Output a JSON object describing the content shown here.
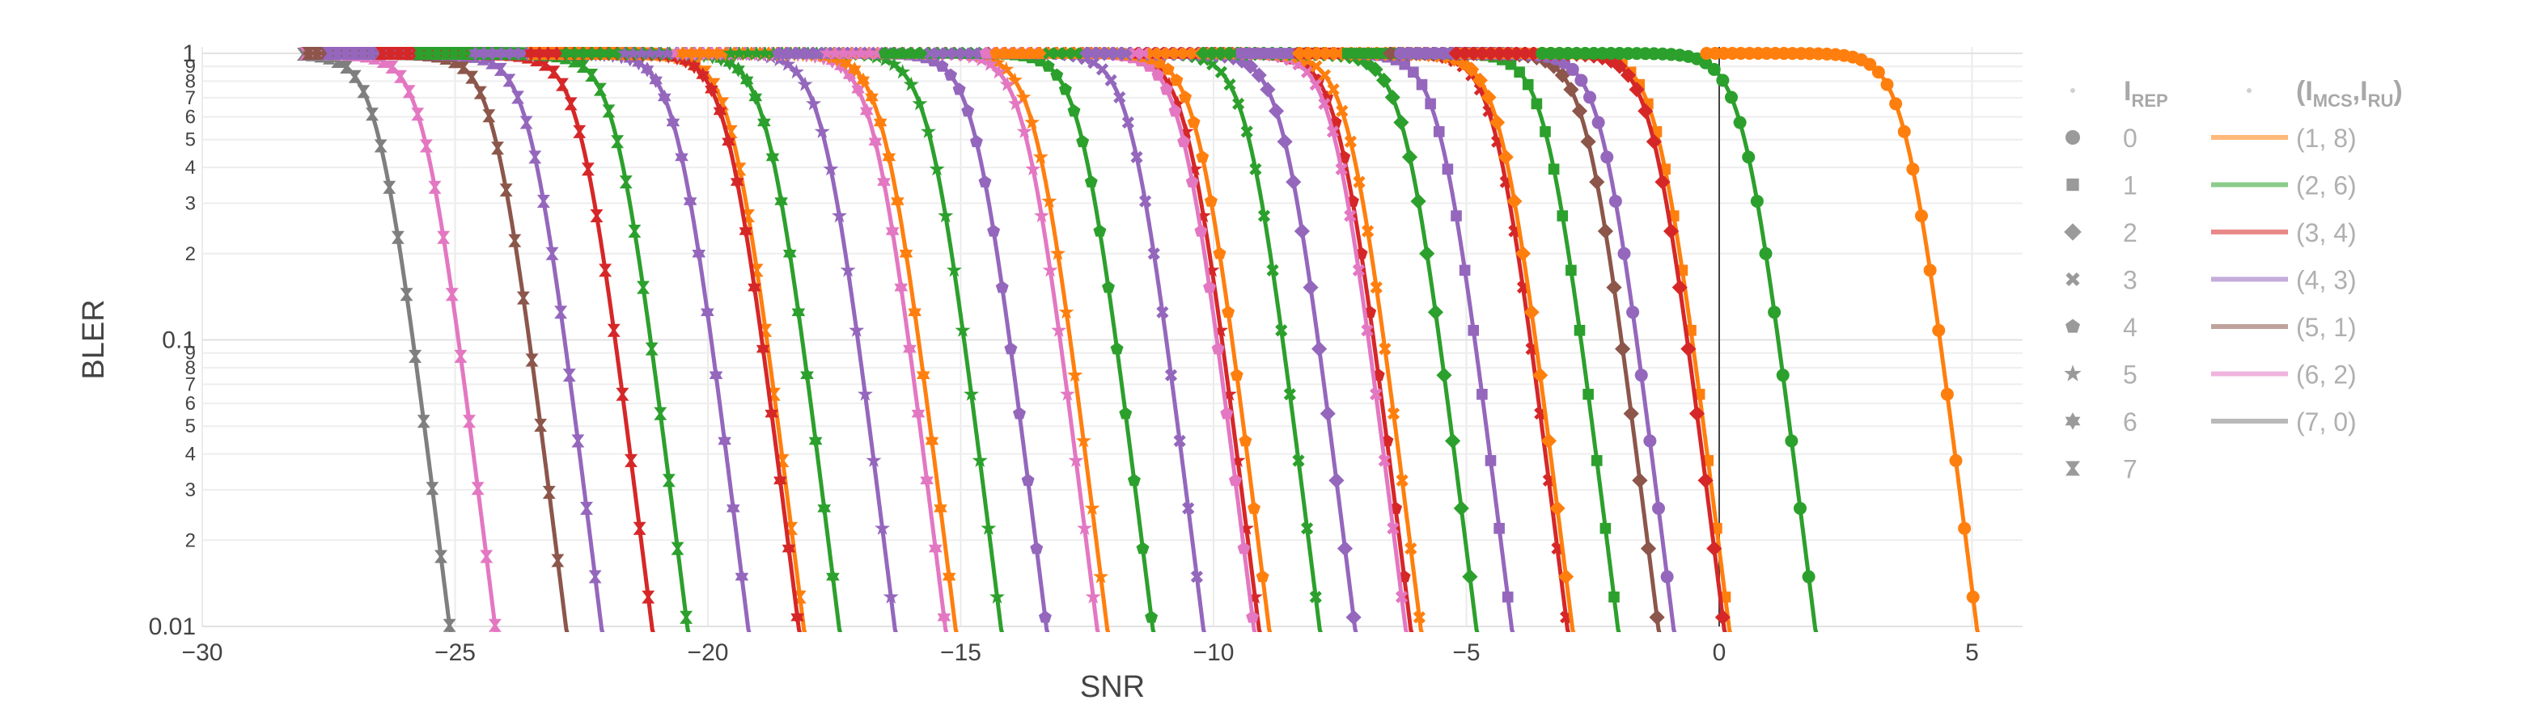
{
  "chart_data": {
    "type": "line",
    "xlabel": "SNR",
    "ylabel": "BLER",
    "xlim": [
      -30,
      6
    ],
    "ylim": [
      0.01,
      1
    ],
    "y_scale": "log",
    "grid": true,
    "x_ticks": [
      "−30",
      "−25",
      "−20",
      "−15",
      "−10",
      "−5",
      "0",
      "5"
    ],
    "x_tick_values": [
      -30,
      -25,
      -20,
      -15,
      -10,
      -5,
      0,
      5
    ],
    "y_major_ticks": [
      "1",
      "0.1",
      "0.01"
    ],
    "y_major_values": [
      1,
      0.1,
      0.01
    ],
    "y_minor_ticks": [
      "9",
      "8",
      "7",
      "6",
      "5",
      "4",
      "3",
      "2"
    ],
    "y_minor_multipliers": [
      9,
      8,
      7,
      6,
      5,
      4,
      3,
      2
    ],
    "legend_placement": "right",
    "legend_rep": {
      "title": "I",
      "title_sub": "REP",
      "items": [
        {
          "label": "0",
          "symbol": "circle"
        },
        {
          "label": "1",
          "symbol": "square"
        },
        {
          "label": "2",
          "symbol": "diamond"
        },
        {
          "label": "3",
          "symbol": "x"
        },
        {
          "label": "4",
          "symbol": "pentagon"
        },
        {
          "label": "5",
          "symbol": "star"
        },
        {
          "label": "6",
          "symbol": "hexagram"
        },
        {
          "label": "7",
          "symbol": "bowtie"
        }
      ]
    },
    "legend_mcs": {
      "title_parts": [
        "(I",
        "MCS",
        ",I",
        "RU",
        ")"
      ],
      "items": [
        {
          "label": "(1, 8)",
          "color": "#ff7f0e"
        },
        {
          "label": "(2, 6)",
          "color": "#2ca02c"
        },
        {
          "label": "(3, 4)",
          "color": "#d62728"
        },
        {
          "label": "(4, 3)",
          "color": "#9467bd"
        },
        {
          "label": "(5, 1)",
          "color": "#8c564b"
        },
        {
          "label": "(6, 2)",
          "color": "#e377c2"
        },
        {
          "label": "(7, 0)",
          "color": "#7f7f7f"
        }
      ]
    },
    "symbols_by_rep": [
      "circle",
      "square",
      "diamond",
      "x",
      "pentagon",
      "star",
      "hexagram",
      "bowtie"
    ],
    "curve_shape": {
      "slope": 3.3
    },
    "series": [
      {
        "color": "#7f7f7f",
        "rep": 7,
        "snr_at_bler_0_01": -25.1
      },
      {
        "color": "#e377c2",
        "rep": 7,
        "snr_at_bler_0_01": -24.2
      },
      {
        "color": "#8c564b",
        "rep": 7,
        "snr_at_bler_0_01": -22.8
      },
      {
        "color": "#9467bd",
        "rep": 7,
        "snr_at_bler_0_01": -22.1
      },
      {
        "color": "#d62728",
        "rep": 7,
        "snr_at_bler_0_01": -21.1
      },
      {
        "color": "#2ca02c",
        "rep": 7,
        "snr_at_bler_0_01": -20.4
      },
      {
        "color": "#9467bd",
        "rep": 6,
        "snr_at_bler_0_01": -19.2
      },
      {
        "color": "#ff7f0e",
        "rep": 7,
        "snr_at_bler_0_01": -18.1
      },
      {
        "color": "#d62728",
        "rep": 6,
        "snr_at_bler_0_01": -18.2
      },
      {
        "color": "#2ca02c",
        "rep": 6,
        "snr_at_bler_0_01": -17.4
      },
      {
        "color": "#9467bd",
        "rep": 5,
        "snr_at_bler_0_01": -16.3
      },
      {
        "color": "#e377c2",
        "rep": 6,
        "snr_at_bler_0_01": -15.3
      },
      {
        "color": "#ff7f0e",
        "rep": 6,
        "snr_at_bler_0_01": -15.1
      },
      {
        "color": "#2ca02c",
        "rep": 5,
        "snr_at_bler_0_01": -14.2
      },
      {
        "color": "#9467bd",
        "rep": 4,
        "snr_at_bler_0_01": -13.3
      },
      {
        "color": "#ff7f0e",
        "rep": 5,
        "snr_at_bler_0_01": -12.1
      },
      {
        "color": "#e377c2",
        "rep": 5,
        "snr_at_bler_0_01": -12.3
      },
      {
        "color": "#2ca02c",
        "rep": 4,
        "snr_at_bler_0_01": -11.2
      },
      {
        "color": "#9467bd",
        "rep": 3,
        "snr_at_bler_0_01": -10.2
      },
      {
        "color": "#d62728",
        "rep": 5,
        "snr_at_bler_0_01": -9.1
      },
      {
        "color": "#e377c2",
        "rep": 4,
        "snr_at_bler_0_01": -9.2
      },
      {
        "color": "#ff7f0e",
        "rep": 4,
        "snr_at_bler_0_01": -8.9
      },
      {
        "color": "#2ca02c",
        "rep": 3,
        "snr_at_bler_0_01": -7.9
      },
      {
        "color": "#9467bd",
        "rep": 2,
        "snr_at_bler_0_01": -7.2
      },
      {
        "color": "#d62728",
        "rep": 4,
        "snr_at_bler_0_01": -6.1
      },
      {
        "color": "#e377c2",
        "rep": 3,
        "snr_at_bler_0_01": -6.2
      },
      {
        "color": "#ff7f0e",
        "rep": 3,
        "snr_at_bler_0_01": -5.9
      },
      {
        "color": "#2ca02c",
        "rep": 2,
        "snr_at_bler_0_01": -4.8
      },
      {
        "color": "#9467bd",
        "rep": 1,
        "snr_at_bler_0_01": -4.1
      },
      {
        "color": "#d62728",
        "rep": 3,
        "snr_at_bler_0_01": -3.0
      },
      {
        "color": "#ff7f0e",
        "rep": 2,
        "snr_at_bler_0_01": -2.9
      },
      {
        "color": "#2ca02c",
        "rep": 1,
        "snr_at_bler_0_01": -2.0
      },
      {
        "color": "#8c564b",
        "rep": 2,
        "snr_at_bler_0_01": -1.2
      },
      {
        "color": "#9467bd",
        "rep": 0,
        "snr_at_bler_0_01": -0.9
      },
      {
        "color": "#ff7f0e",
        "rep": 1,
        "snr_at_bler_0_01": 0.2
      },
      {
        "color": "#d62728",
        "rep": 2,
        "snr_at_bler_0_01": 0.1
      },
      {
        "color": "#2ca02c",
        "rep": 0,
        "snr_at_bler_0_01": 1.9
      },
      {
        "color": "#ff7f0e",
        "rep": 0,
        "snr_at_bler_0_01": 5.1
      }
    ]
  }
}
